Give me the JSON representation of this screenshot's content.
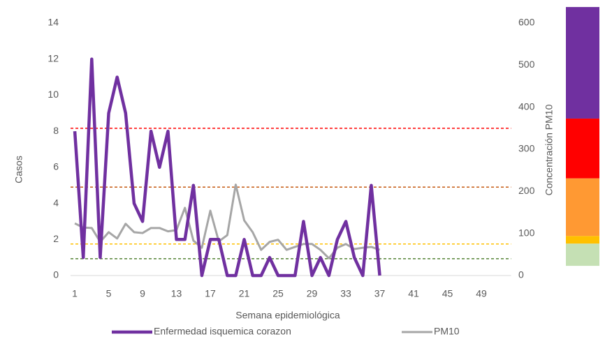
{
  "chart_data": {
    "type": "line",
    "xlabel": "Semana epidemiológica",
    "ylabel": "Casos",
    "y2label": "Concentración PM10",
    "categories": [
      1,
      null,
      null,
      null,
      5,
      null,
      null,
      null,
      9,
      null,
      null,
      null,
      13,
      null,
      null,
      null,
      17,
      null,
      null,
      null,
      21,
      null,
      null,
      null,
      25,
      null,
      null,
      null,
      29,
      null,
      null,
      null,
      33,
      null,
      null,
      null,
      37,
      null,
      null,
      null,
      41,
      null,
      null,
      null,
      45,
      null,
      null,
      null,
      49,
      null,
      null,
      null
    ],
    "series": [
      {
        "name": "Enfermedad isquemica corazon",
        "color": "#7030a0",
        "values": [
          8,
          1,
          12,
          1,
          9,
          11,
          9,
          4,
          3,
          8,
          6,
          8,
          2,
          2,
          5,
          0,
          2,
          2,
          0,
          0,
          2,
          0,
          0,
          1,
          0,
          0,
          0,
          3,
          0,
          1,
          0,
          2,
          3,
          1,
          0,
          5,
          0,
          null,
          null,
          null,
          null,
          null,
          null,
          null,
          null,
          null,
          null,
          null,
          null,
          null,
          null,
          null
        ]
      },
      {
        "name": "PM10",
        "color": "#a6a6a6",
        "axis": "y2",
        "values": [
          124,
          114,
          113,
          80,
          103,
          88,
          123,
          103,
          101,
          113,
          113,
          105,
          108,
          161,
          83,
          66,
          154,
          81,
          96,
          216,
          131,
          103,
          61,
          80,
          85,
          61,
          68,
          75,
          75,
          61,
          41,
          66,
          75,
          63,
          66,
          68,
          61,
          null,
          null,
          null,
          null,
          null,
          null,
          null,
          null,
          null,
          null,
          null,
          null,
          null,
          null,
          null
        ]
      }
    ],
    "ylim": [
      0,
      14
    ],
    "yticks": [
      0,
      2,
      4,
      6,
      8,
      10,
      12,
      14
    ],
    "y2lim": [
      0,
      600
    ],
    "y2ticks": [
      0,
      100,
      200,
      300,
      400,
      500,
      600
    ],
    "reference_lines": [
      {
        "value": 350,
        "color": "#ff0000"
      },
      {
        "value": 210,
        "color": "#c55a11"
      },
      {
        "value": 75,
        "color": "#ffc000"
      },
      {
        "value": 40,
        "color": "#548235"
      }
    ],
    "bands": [
      {
        "from": 23,
        "to": 76,
        "color": "#c5e0b4"
      },
      {
        "from": 76,
        "to": 94,
        "color": "#ffc000"
      },
      {
        "from": 94,
        "to": 231,
        "color": "#ff9933"
      },
      {
        "from": 231,
        "to": 373,
        "color": "#ff0000"
      },
      {
        "from": 373,
        "to": 638,
        "color": "#7030a0"
      }
    ],
    "legend": "bottom"
  }
}
